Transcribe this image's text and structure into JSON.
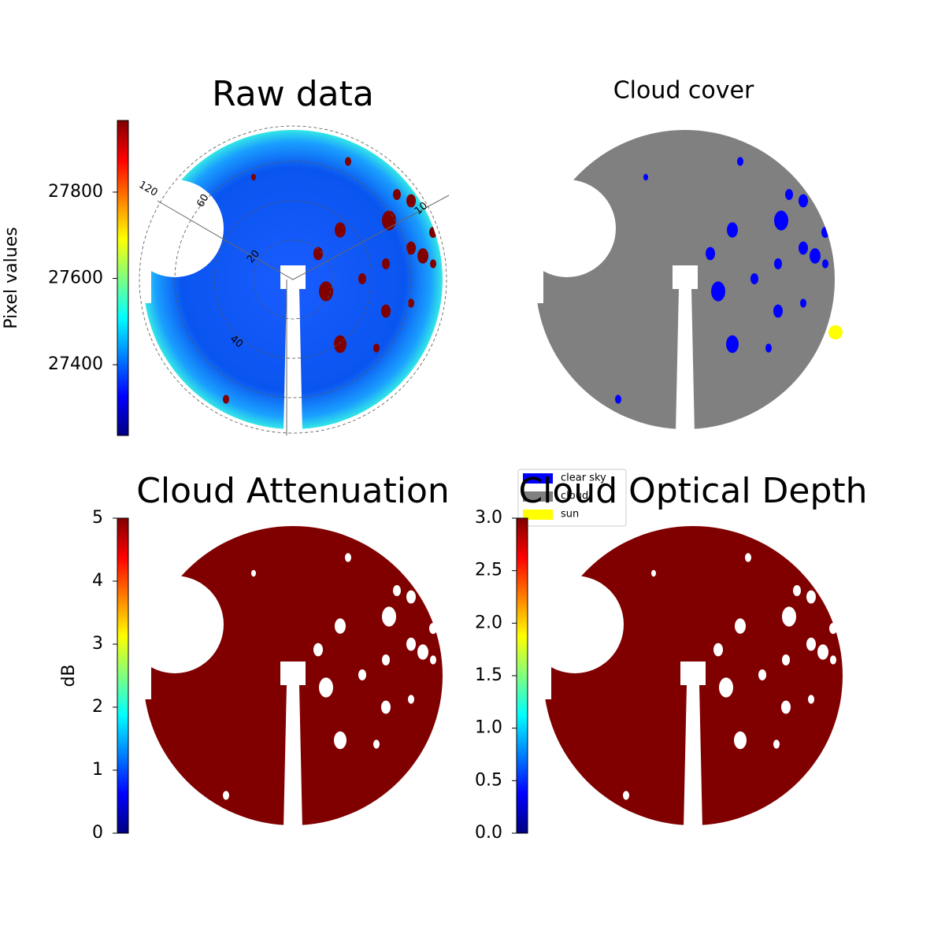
{
  "chart_data": [
    {
      "type": "image",
      "title": "Raw data",
      "colorbar": {
        "label": "Pixel values",
        "lim": [
          27236,
          27966
        ],
        "ticks": [
          27400,
          27600,
          27800
        ],
        "cmap": "jet"
      },
      "annotations": [
        "120",
        "60",
        "20",
        "40",
        "10"
      ]
    },
    {
      "type": "image",
      "title": "Cloud cover",
      "series": [
        {
          "name": "clear sky",
          "color": "#0000ff"
        },
        {
          "name": "cloud",
          "color": "#808080"
        },
        {
          "name": "sun",
          "color": "#ffff00"
        }
      ]
    },
    {
      "type": "image",
      "title": "Cloud Attenuation",
      "colorbar": {
        "label": "dB",
        "lim": [
          0,
          5
        ],
        "ticks": [
          0,
          1,
          2,
          3,
          4,
          5
        ],
        "cmap": "jet"
      }
    },
    {
      "type": "image",
      "title": "Cloud Optical Depth",
      "colorbar": {
        "lim": [
          0,
          3
        ],
        "ticks": [
          {
            "value": 0,
            "label": "0.0"
          },
          0.5,
          {
            "value": 1,
            "label": "1.0"
          },
          1.5,
          {
            "value": 2,
            "label": "2.0"
          },
          2.5,
          {
            "value": 3,
            "label": "3.0"
          }
        ],
        "cmap": "jet"
      }
    }
  ]
}
